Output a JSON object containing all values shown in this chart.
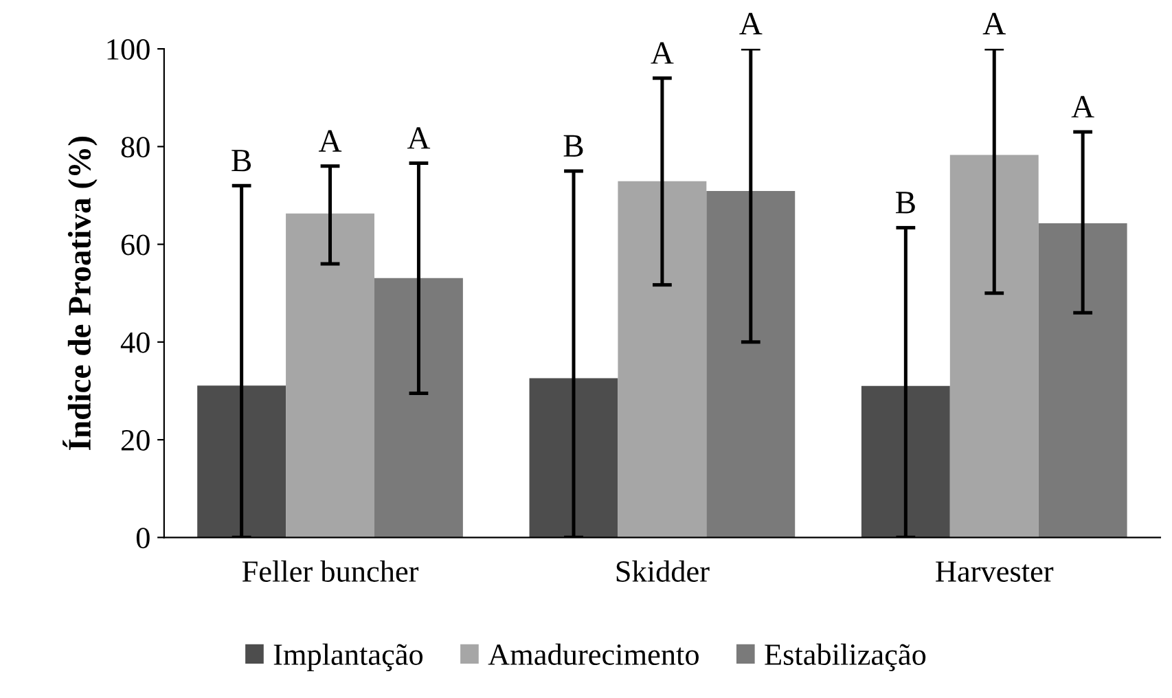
{
  "chart_data": {
    "type": "bar",
    "ylabel": "Índice de Proativa (%)",
    "categories": [
      "Feller buncher",
      "Skidder",
      "Harvester"
    ],
    "series": [
      {
        "name": "Implantação",
        "color": "#4d4d4d",
        "values": [
          31.1,
          32.6,
          31.0
        ],
        "errors": [
          [
            0,
            72
          ],
          [
            0,
            75
          ],
          [
            0,
            63.4
          ]
        ]
      },
      {
        "name": "Amadurecimento",
        "color": "#a6a6a6",
        "values": [
          66.3,
          72.9,
          78.3
        ],
        "errors": [
          [
            56,
            76
          ],
          [
            51.7,
            94
          ],
          [
            50,
            100
          ]
        ]
      },
      {
        "name": "Estabilização",
        "color": "#7a7a7a",
        "values": [
          53.1,
          70.9,
          64.3
        ],
        "errors": [
          [
            29.5,
            76.6
          ],
          [
            40,
            100
          ],
          [
            46,
            83
          ]
        ]
      }
    ],
    "annotations": [
      "B",
      "A",
      "A",
      "B",
      "A",
      "A",
      "B",
      "A",
      "A"
    ],
    "ylim": [
      0,
      100
    ],
    "yticks": [
      0,
      20,
      40,
      60,
      80,
      100
    ],
    "grid": false,
    "legend": "bottom"
  }
}
